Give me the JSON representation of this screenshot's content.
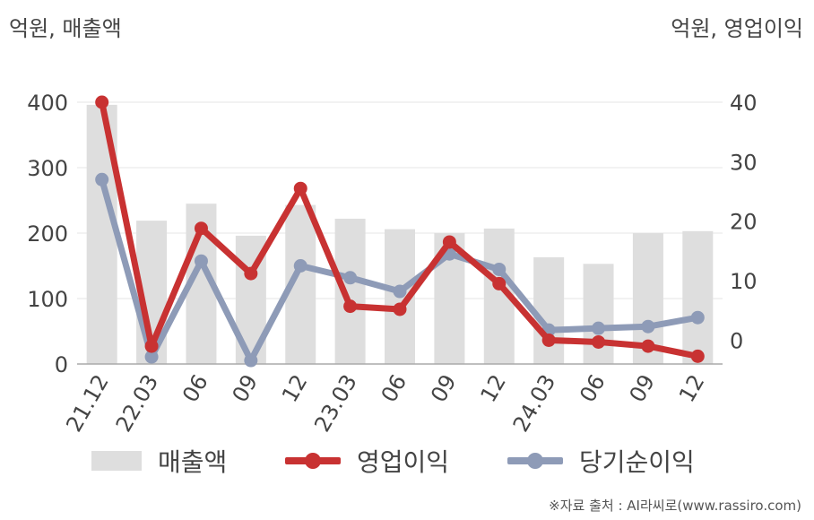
{
  "units": {
    "left": "억원, 매출액",
    "right": "억원, 영업이익"
  },
  "source": "※자료 출처 : AI라씨로(www.rassiro.com)",
  "colors": {
    "bar": "#dedede",
    "operating": "#c83232",
    "net": "#8e9bb7",
    "grid": "#e6e6e6",
    "axis": "#aaaaaa"
  },
  "chart_data": {
    "type": "bar+line",
    "categories": [
      "21.12",
      "22.03",
      "06",
      "09",
      "12",
      "23.03",
      "06",
      "09",
      "12",
      "24.03",
      "06",
      "09",
      "12"
    ],
    "left_axis": {
      "ticks": [
        "0",
        "100",
        "200",
        "300",
        "400"
      ],
      "ylim": [
        0,
        400
      ]
    },
    "right_axis": {
      "ticks": [
        "0",
        "10",
        "20",
        "30",
        "40"
      ],
      "ylim": [
        -4,
        40
      ]
    },
    "series": [
      {
        "name": "매출액",
        "kind": "bar",
        "axis": "left",
        "values": [
          396,
          219,
          245,
          196,
          243,
          222,
          206,
          200,
          207,
          163,
          153,
          200,
          203
        ]
      },
      {
        "name": "영업이익",
        "kind": "line",
        "axis": "right",
        "values": [
          40.0,
          -1.0,
          18.8,
          11.2,
          25.5,
          5.7,
          5.2,
          16.5,
          9.5,
          0.0,
          -0.3,
          -1.0,
          -2.7
        ]
      },
      {
        "name": "당기순이익",
        "kind": "line",
        "axis": "right",
        "values": [
          27.0,
          -2.8,
          13.3,
          -3.4,
          12.5,
          10.5,
          8.2,
          14.5,
          11.9,
          1.7,
          2.0,
          2.3,
          3.8
        ]
      }
    ]
  }
}
